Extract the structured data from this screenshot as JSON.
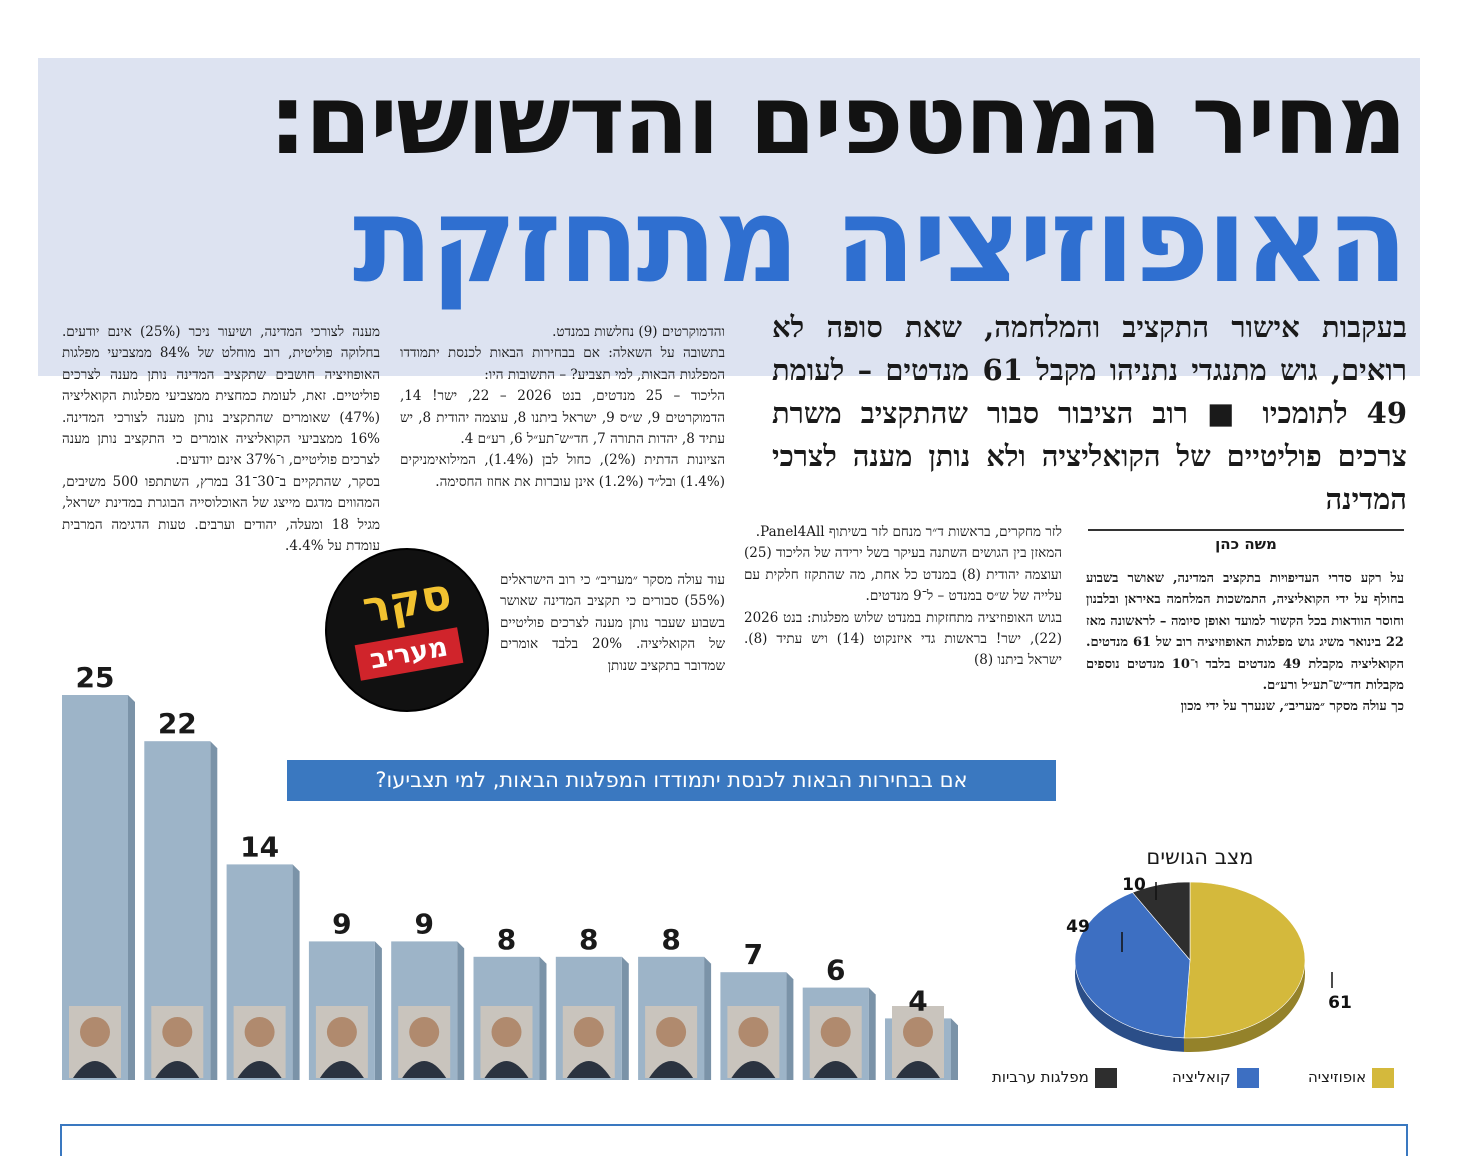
{
  "headline": {
    "line1": "מחיר המחטפים והדשושים:",
    "line2": "האופוזיציה מתחזקת",
    "subhead": "בעקבות אישור התקציב והמלחמה, שאת סופה לא רואים, גוש מתנגדי נתניהו מקבל 61 מנדטים – לעומת 49 לתומכיו ■ רוב הציבור סבור שהתקציב משרת צרכים פוליטיים של הקואליציה ולא נותן מענה לצרכי המדינה"
  },
  "author": "משה כהן",
  "columns": {
    "author_col": "על רקע סדרי העדיפויות בתקציב המדינה, שאושר בשבוע בחולף על ידי הקואליציה, התמשכות המלחמה באיראן ובלבנון וחוסר הוודאות בכל הקשור למועד ואופן סיומה – לראשונה מאז 22 בינואר משיג גוש מפלגות האופוזיציה רוב של 61 מנדטים. הקואליציה מקבלת 49 מנדטים בלבד ו־10 מנדטים נוספים מקבלות חד״ש־תע״ל ורע״ם.\nכך עולה מסקר ״מעריב״, שנערך על ידי מכון",
    "col_b": "לזר מחקרים, בראשות ד״ר מנחם לזר בשיתוף Panel4All.\nהמאזן בין הגושים השתנה בעיקר בשל ירידה של הליכוד (25) ועוצמה יהודית (8) במנדט כל אחת, מה שהתקזז חלקית עם עלייה של ש״ס במנדט – ל־9 מנדטים.\nבגוש האופוזיציה מתחזקות במנדט שלוש מפלגות: בנט 2026 (22), ישר! בראשות גדי איזנקוט (14) ויש עתיד (8). ישראל ביתנו (8)",
    "col_c": "והדמוקרטים (9) נחלשות במנדט.\nבתשובה על השאלה: אם בבחירות הבאות לכנסת יתמודדו המפלגות הבאות, למי תצביע? – התשובות היו:\nהליכוד – 25 מנדטים, בנט 2026 – 22, ישר! 14, הדמוקרטים 9, ש״ס 9, ישראל ביתנו 8, עוצמה יהודית 8, יש עתיד 8, יהדות התורה 7, חד״ש־תע״ל 6, רע״ם 4.\nהציונות הדתית (2%), כחול לבן (1.4%), המילואימניקים (1.4%) ובל״ד (1.2%) אינן עוברות את אחוז החסימה.",
    "col_c2": "עוד עולה מסקר ״מעריב״ כי רוב הישראלים (55%) סבורים כי תקציב המדינה שאושר בשבוע שעבר נותן מענה לצרכים פוליטיים של הקואליציה. 20% בלבד אומרים שמדובר בתקציב שנותן",
    "col_d": "מענה לצורכי המדינה, ושיעור ניכר (25%) אינם יודעים. בחלוקה פוליטית, רוב מוחלט של 84% ממצביעי מפלגות האופוזיציה חושבים שתקציב המדינה נותן מענה לצרכים פוליטיים. זאת, לעומת כמחצית ממצביעי מפלגות הקואליציה (47%) שאומרים שהתקציב נותן מענה לצורכי המדינה. 16% ממצביעי הקואליציה אומרים כי התקציב נותן מענה לצרכים פוליטיים, ו־37% אינם יודעים.\nבסקר, שהתקיים ב־30־31 במרץ, השתתפו 500 משיבים, המהווים מדגם מייצג של האוכלוסייה הבוגרת במדינת ישראל, מגיל 18 ומעלה, יהודים וערבים. טעות הדגימה המרבית עומדת על 4.4%."
  },
  "logo": {
    "top": "סקר",
    "bottom": "מעריב"
  },
  "question": "אם בבחירות הבאות לכנסת יתמודדו המפלגות הבאות, למי תצביעו?",
  "chart_data": [
    {
      "type": "bar",
      "title": "אם בבחירות הבאות לכנסת יתמודדו המפלגות הבאות, למי תצביעו?",
      "values": [
        25,
        22,
        14,
        9,
        9,
        8,
        8,
        8,
        7,
        6,
        4
      ],
      "value_labels": [
        "25",
        "22",
        "14",
        "9",
        "9",
        "8",
        "8",
        "8",
        "7",
        "6",
        "4"
      ],
      "ylim": [
        0,
        25
      ],
      "bar_color": "#9db4c8"
    },
    {
      "type": "pie",
      "title": "מצב הגושים",
      "labels": [
        "אופוזיציה",
        "קואליציה",
        "מפלגות ערביות"
      ],
      "values": [
        61,
        49,
        10
      ],
      "colors": [
        "#d4b93c",
        "#3d6fc2",
        "#2e2e2e"
      ]
    }
  ],
  "bloc_title": "מצב הגושים",
  "legend": [
    {
      "label": "אופוזיציה",
      "color": "#d4b93c"
    },
    {
      "label": "קואליציה",
      "color": "#3d6fc2"
    },
    {
      "label": "מפלגות ערביות",
      "color": "#2e2e2e"
    }
  ]
}
